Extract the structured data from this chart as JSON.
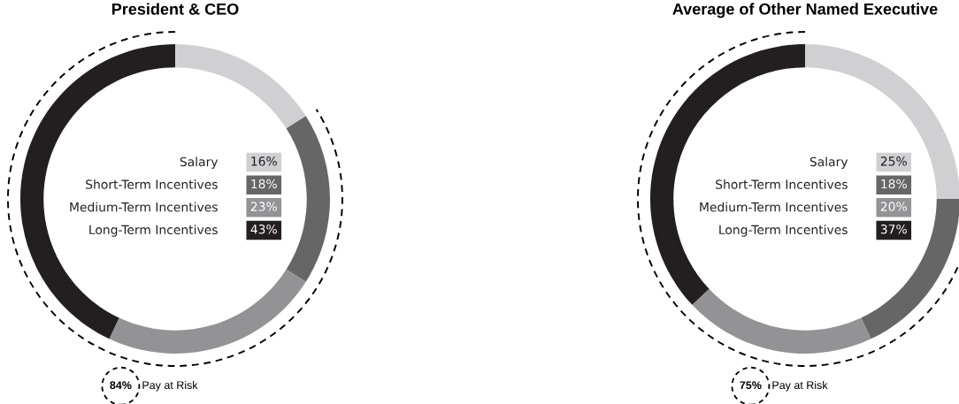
{
  "chart_data": [
    {
      "type": "donut",
      "title": "President & CEO",
      "categories": [
        "Salary",
        "Short-Term Incentives",
        "Medium-Term Incentives",
        "Long-Term Incentives"
      ],
      "values": [
        16,
        18,
        23,
        43
      ],
      "value_labels": [
        "16%",
        "18%",
        "23%",
        "43%"
      ],
      "colors": [
        "#d0d0d2",
        "#666666",
        "#939395",
        "#231f20"
      ],
      "legend": "center",
      "annotations": [
        "84% Pay at Risk"
      ]
    },
    {
      "type": "donut",
      "title": "Average of Other Named Executive",
      "categories": [
        "Salary",
        "Short-Term Incentives",
        "Medium-Term Incentives",
        "Long-Term Incentives"
      ],
      "values": [
        25,
        18,
        20,
        37
      ],
      "value_labels": [
        "25%",
        "18%",
        "20%",
        "37%"
      ],
      "colors": [
        "#d0d0d2",
        "#666666",
        "#939395",
        "#231f20"
      ],
      "legend": "center",
      "annotations": [
        "75% Pay at Risk"
      ]
    }
  ]
}
